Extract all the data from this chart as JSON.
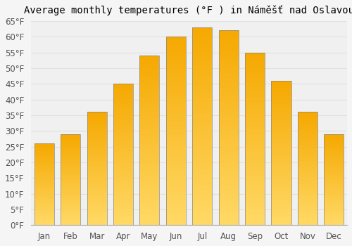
{
  "title": "Average monthly temperatures (°F ) in Náměšť nad Oslavou",
  "months": [
    "Jan",
    "Feb",
    "Mar",
    "Apr",
    "May",
    "Jun",
    "Jul",
    "Aug",
    "Sep",
    "Oct",
    "Nov",
    "Dec"
  ],
  "values": [
    26,
    29,
    36,
    45,
    54,
    60,
    63,
    62,
    55,
    46,
    36,
    29
  ],
  "bar_color_top": "#F5A800",
  "bar_color_bottom": "#FFD966",
  "bar_edge_color": "#888888",
  "ylim": [
    0,
    65
  ],
  "yticks": [
    0,
    5,
    10,
    15,
    20,
    25,
    30,
    35,
    40,
    45,
    50,
    55,
    60,
    65
  ],
  "ytick_labels": [
    "0°F",
    "5°F",
    "10°F",
    "15°F",
    "20°F",
    "25°F",
    "30°F",
    "35°F",
    "40°F",
    "45°F",
    "50°F",
    "55°F",
    "60°F",
    "65°F"
  ],
  "background_color": "#f5f5f5",
  "plot_bg_color": "#f0f0f0",
  "grid_color": "#e0e0e0",
  "title_fontsize": 10,
  "tick_fontsize": 8.5,
  "bar_width": 0.75
}
